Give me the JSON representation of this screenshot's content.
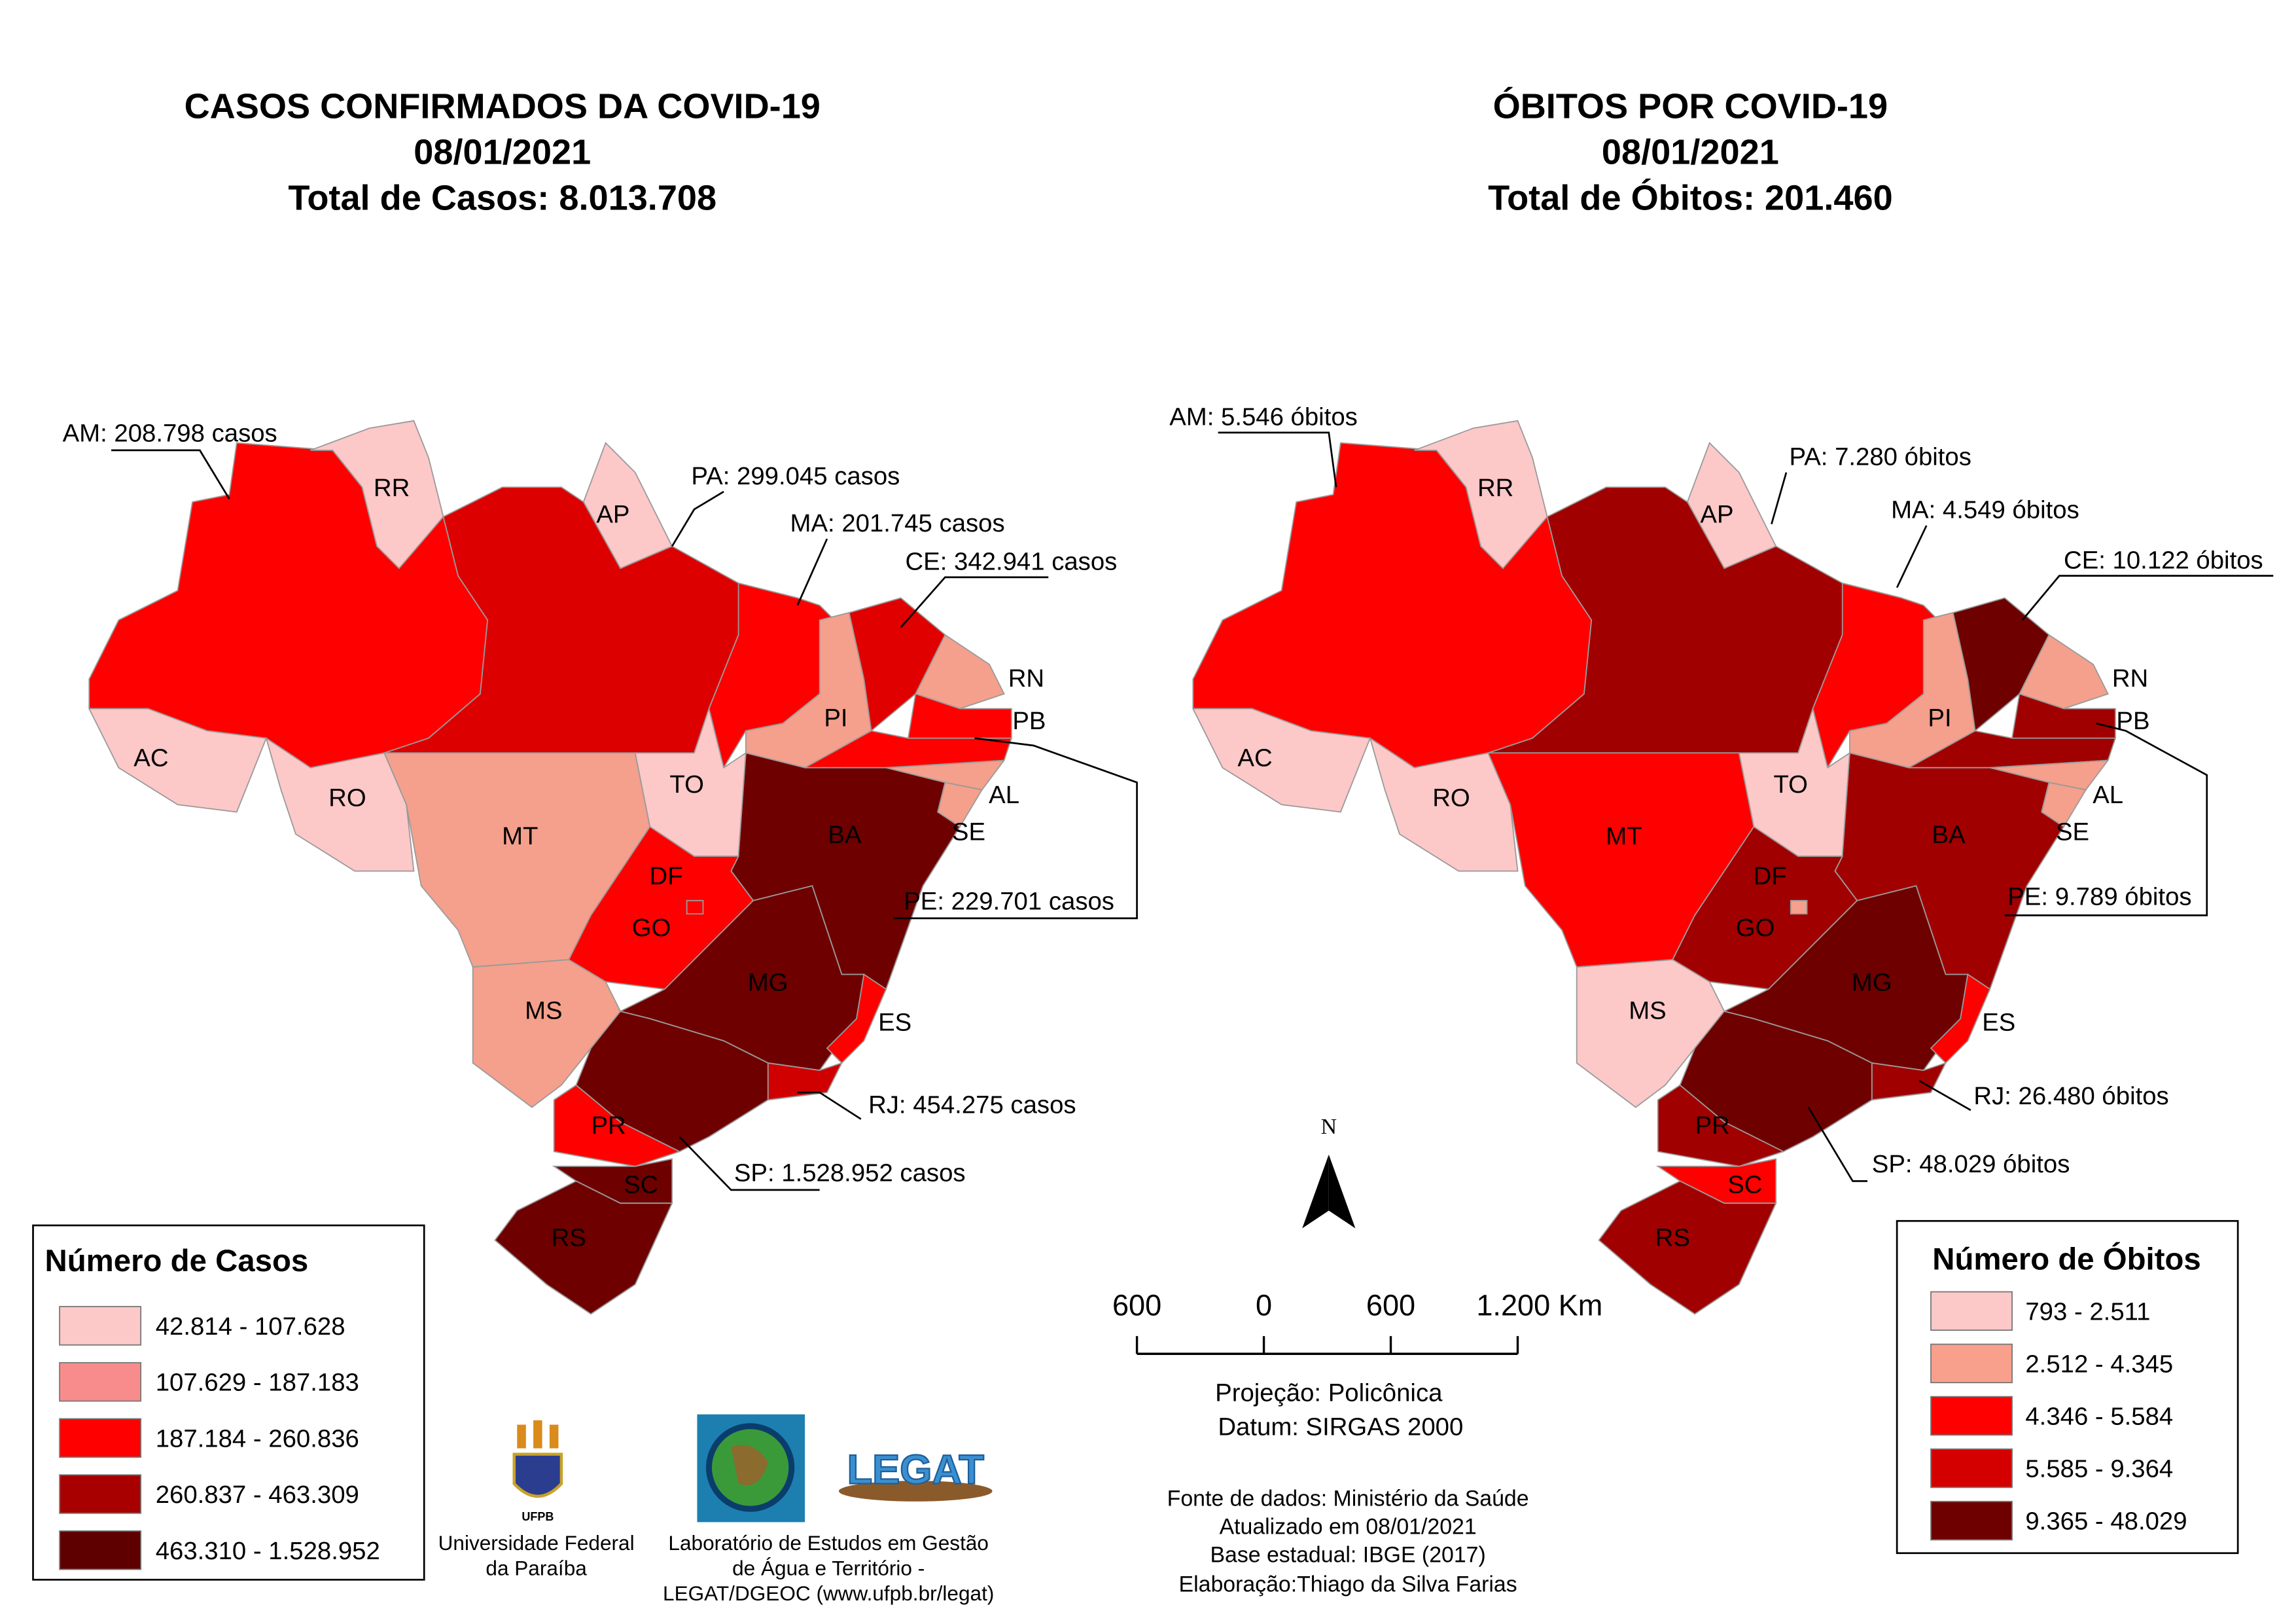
{
  "maps": [
    {
      "title": "CASOS CONFIRMADOS DA COVID-19",
      "date": "08/01/2021",
      "total": "Total de Casos: 8.013.708",
      "states": [
        {
          "color": "#ff0000"
        },
        {
          "label": "RR",
          "color": "#fcc8c8"
        },
        {
          "label": "AP",
          "color": "#fcc8c8"
        },
        {
          "color": "#dd0000"
        },
        {
          "label": "AC",
          "color": "#fcc8c8"
        },
        {
          "label": "RO",
          "color": "#fcc8c8"
        },
        {
          "label": "MT",
          "color": "#f4a08c"
        },
        {
          "color": "#ff0000"
        },
        {
          "label": "PI",
          "color": "#f4a08c"
        },
        {
          "color": "#e00000"
        },
        {
          "label": "RN",
          "color": "#f4a08c"
        },
        {
          "label": "PB",
          "color": "#ff0000"
        },
        {
          "color": "#ff0000"
        },
        {
          "label": "AL",
          "color": "#f4a08c"
        },
        {
          "label": "SE",
          "color": "#f4a08c"
        },
        {
          "label": "TO",
          "color": "#fcc8c8"
        },
        {
          "label": "BA",
          "color": "#6e0000"
        },
        {
          "label": "GO",
          "color": "#ff0000"
        },
        {
          "label": "DF",
          "color": "#ff0000"
        },
        {
          "label": "MG",
          "color": "#6e0000"
        },
        {
          "label": "MS",
          "color": "#f4a08c"
        },
        {
          "label": "ES",
          "color": "#ff0000"
        },
        {
          "color": "#d00000"
        },
        {
          "color": "#6e0000"
        },
        {
          "label": "PR",
          "color": "#ff0000"
        },
        {
          "label": "SC",
          "color": "#6e0000"
        },
        {
          "label": "RS",
          "color": "#6e0000"
        }
      ],
      "callouts": [
        "AM: 208.798 casos",
        "PA: 299.045 casos",
        "MA: 201.745 casos",
        "CE: 342.941 casos",
        "PE: 229.701 casos",
        "RJ: 454.275 casos",
        "SP: 1.528.952 casos"
      ],
      "legend": {
        "title": "Número de Casos",
        "items": [
          {
            "label": "42.814 - 107.628",
            "color": "#fdc8c8"
          },
          {
            "label": "107.629 - 187.183",
            "color": "#f88c8c"
          },
          {
            "label": "187.184 - 260.836",
            "color": "#ff0000"
          },
          {
            "label": "260.837 - 463.309",
            "color": "#a80000"
          },
          {
            "label": "463.310 - 1.528.952",
            "color": "#5e0000"
          }
        ]
      }
    },
    {
      "title": "ÓBITOS POR COVID-19",
      "date": "08/01/2021",
      "total": "Total de Óbitos: 201.460",
      "states": [
        {
          "color": "#ff0000"
        },
        {
          "label": "RR",
          "color": "#fcc8c8"
        },
        {
          "label": "AP",
          "color": "#fcc8c8"
        },
        {
          "color": "#a00000"
        },
        {
          "label": "AC",
          "color": "#fcc8c8"
        },
        {
          "label": "RO",
          "color": "#fcc8c8"
        },
        {
          "label": "MT",
          "color": "#ff0000"
        },
        {
          "color": "#ff0000"
        },
        {
          "label": "PI",
          "color": "#f4a08c"
        },
        {
          "color": "#6e0000"
        },
        {
          "label": "RN",
          "color": "#f4a08c"
        },
        {
          "label": "PB",
          "color": "#a00000"
        },
        {
          "color": "#a00000"
        },
        {
          "label": "AL",
          "color": "#f4a08c"
        },
        {
          "label": "SE",
          "color": "#f4a08c"
        },
        {
          "label": "TO",
          "color": "#fcc8c8"
        },
        {
          "label": "BA",
          "color": "#a00000"
        },
        {
          "label": "GO",
          "color": "#a00000"
        },
        {
          "label": "DF",
          "color": "#f4a08c"
        },
        {
          "label": "MG",
          "color": "#6e0000"
        },
        {
          "label": "MS",
          "color": "#fcc8c8"
        },
        {
          "label": "ES",
          "color": "#ff0000"
        },
        {
          "color": "#a00000"
        },
        {
          "color": "#6e0000"
        },
        {
          "label": "PR",
          "color": "#a00000"
        },
        {
          "label": "SC",
          "color": "#ff0000"
        },
        {
          "label": "RS",
          "color": "#a00000"
        }
      ],
      "callouts": [
        "AM: 5.546 óbitos",
        "PA: 7.280 óbitos",
        "MA: 4.549 óbitos",
        "CE: 10.122 óbitos",
        "PE: 9.789 óbitos",
        "RJ: 26.480 óbitos",
        "SP: 48.029 óbitos"
      ],
      "legend": {
        "title": "Número de Óbitos",
        "items": [
          {
            "label": "793 - 2.511",
            "color": "#fdc8c8"
          },
          {
            "label": "2.512 - 4.345",
            "color": "#f9a08c"
          },
          {
            "label": "4.346 - 5.584",
            "color": "#ff0000"
          },
          {
            "label": "5.585 - 9.364",
            "color": "#d40000"
          },
          {
            "label": "9.365 - 48.029",
            "color": "#6e0000"
          }
        ]
      }
    }
  ],
  "north": "N",
  "scale": {
    "ticks": [
      "600",
      "0",
      "600",
      "1.200 Km"
    ],
    "projection": "Projeção: Policônica",
    "datum": "Datum: SIRGAS 2000"
  },
  "logos": [
    "UFPB",
    "LEGAT"
  ],
  "credits": {
    "ufpb": [
      "Universidade Federal",
      "da Paraíba"
    ],
    "legat": [
      "Laboratório de Estudos em Gestão",
      "de Água e Território -",
      "LEGAT/DGEOC (www.ufpb.br/legat)"
    ]
  },
  "sources": [
    "Fonte de dados: Ministério da Saúde",
    "Atualizado em 08/01/2021",
    "Base estadual: IBGE (2017)",
    "Elaboração:Thiago da Silva Farias"
  ]
}
